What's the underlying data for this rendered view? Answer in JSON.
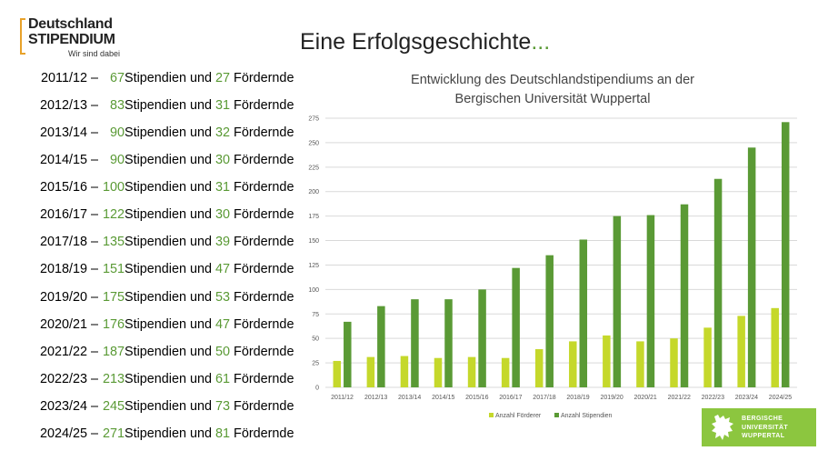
{
  "logo": {
    "line1": "Deutschland",
    "line2": "STIPENDIUM",
    "tagline": "Wir sind dabei"
  },
  "title": {
    "main": "Eine Erfolgsgeschichte",
    "ellipsis": "..."
  },
  "list": {
    "connector": "Stipendien und",
    "suffix": "Fördernde",
    "items": [
      {
        "year": "2011/12 –",
        "stipendien": "67",
        "foerdernde": "27"
      },
      {
        "year": "2012/13 –",
        "stipendien": "83",
        "foerdernde": "31"
      },
      {
        "year": "2013/14 –",
        "stipendien": "90",
        "foerdernde": "32"
      },
      {
        "year": "2014/15 –",
        "stipendien": "90",
        "foerdernde": "30"
      },
      {
        "year": "2015/16 –",
        "stipendien": "100",
        "foerdernde": "31"
      },
      {
        "year": "2016/17 –",
        "stipendien": "122",
        "foerdernde": "30"
      },
      {
        "year": "2017/18 –",
        "stipendien": "135",
        "foerdernde": "39"
      },
      {
        "year": "2018/19 –",
        "stipendien": "151",
        "foerdernde": "47"
      },
      {
        "year": "2019/20 –",
        "stipendien": "175",
        "foerdernde": "53"
      },
      {
        "year": "2020/21 –",
        "stipendien": "176",
        "foerdernde": "47"
      },
      {
        "year": "2021/22 –",
        "stipendien": "187",
        "foerdernde": "50"
      },
      {
        "year": "2022/23 –",
        "stipendien": "213",
        "foerdernde": "61"
      },
      {
        "year": "2023/24 –",
        "stipendien": "245",
        "foerdernde": "73"
      },
      {
        "year": "2024/25 –",
        "stipendien": "271",
        "foerdernde": "81"
      }
    ]
  },
  "chart_data": {
    "type": "bar",
    "title": [
      "Entwicklung des Deutschlandstipendiums an der",
      "Bergischen Universität Wuppertal"
    ],
    "xlabel": "",
    "ylabel": "",
    "categories": [
      "2011/12",
      "2012/13",
      "2013/14",
      "2014/15",
      "2015/16",
      "2016/17",
      "2017/18",
      "2018/19",
      "2019/20",
      "2020/21",
      "2021/22",
      "2022/23",
      "2023/24",
      "2024/25"
    ],
    "series": [
      {
        "name": "Anzahl Förderer",
        "color": "#c5d82b",
        "values": [
          27,
          31,
          32,
          30,
          31,
          30,
          39,
          47,
          53,
          47,
          50,
          61,
          73,
          81
        ]
      },
      {
        "name": "Anzahl Stipendien",
        "color": "#5a9a35",
        "values": [
          67,
          83,
          90,
          90,
          100,
          122,
          135,
          151,
          175,
          176,
          187,
          213,
          245,
          271
        ]
      }
    ],
    "ylim": [
      0,
      275
    ],
    "yticks": [
      0,
      25,
      50,
      75,
      100,
      125,
      150,
      175,
      200,
      225,
      250,
      275
    ],
    "grid": true,
    "legend": "bottom"
  },
  "university": {
    "line1": "BERGISCHE",
    "line2": "UNIVERSITÄT",
    "line3": "WUPPERTAL",
    "color": "#8cc63f"
  }
}
